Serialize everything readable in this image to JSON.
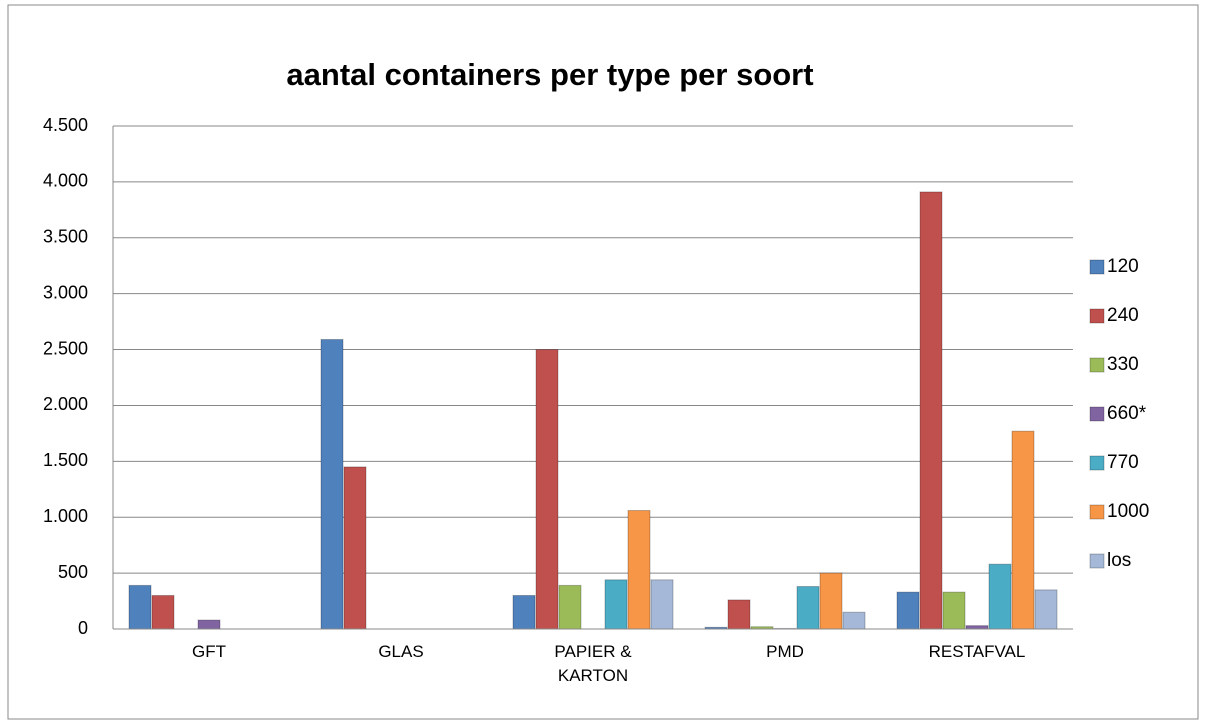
{
  "chart_data": {
    "type": "bar",
    "title": "aantal containers per type per soort",
    "categories": [
      "GFT",
      "GLAS",
      "PAPIER & KARTON",
      "PMD",
      "RESTAFVAL"
    ],
    "series": [
      {
        "name": "120",
        "color": "#4f81bd",
        "values": [
          390,
          2590,
          300,
          15,
          330
        ]
      },
      {
        "name": "240",
        "color": "#c0504d",
        "values": [
          300,
          1450,
          2500,
          260,
          3910
        ]
      },
      {
        "name": "330",
        "color": "#9bbb59",
        "values": [
          0,
          0,
          390,
          20,
          330
        ]
      },
      {
        "name": "660*",
        "color": "#8064a2",
        "values": [
          80,
          0,
          0,
          5,
          30
        ]
      },
      {
        "name": "770",
        "color": "#4bacc6",
        "values": [
          0,
          0,
          440,
          380,
          580
        ]
      },
      {
        "name": "1000",
        "color": "#f79646",
        "values": [
          0,
          0,
          1060,
          500,
          1770
        ]
      },
      {
        "name": "los",
        "color": "#a5b8d7",
        "values": [
          0,
          0,
          440,
          150,
          350
        ]
      }
    ],
    "ylim": [
      0,
      4500
    ],
    "yticks": [
      0,
      500,
      {
        "value": 1000,
        "label": "1.000"
      },
      {
        "value": 1500,
        "label": "1.500"
      },
      {
        "value": 2000,
        "label": "2.000"
      },
      {
        "value": 2500,
        "label": "2.500"
      },
      {
        "value": 3000,
        "label": "3.000"
      },
      {
        "value": 3500,
        "label": "3.500"
      },
      {
        "value": 4000,
        "label": "4.000"
      },
      {
        "value": 4500,
        "label": "4.500"
      }
    ],
    "grid": true,
    "legend": "right"
  }
}
